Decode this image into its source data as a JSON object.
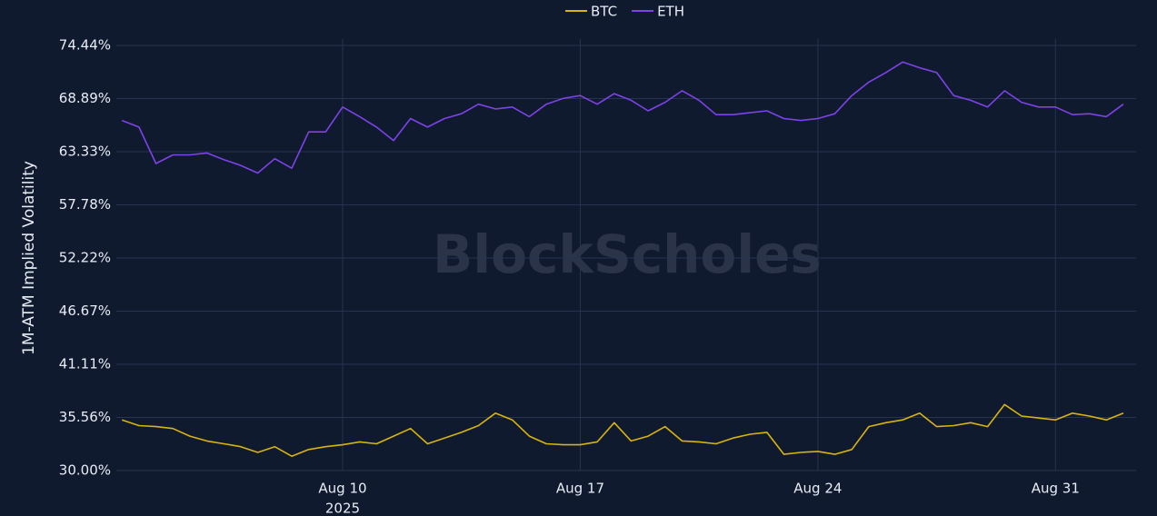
{
  "chart_data": {
    "type": "line",
    "watermark": "BlockScholes",
    "y_axis_label": "1M-ATM Implied Volatility",
    "x_axis_year_label": "2025",
    "xlim": [
      "2025-08-03T08:00",
      "2025-09-02T09:00"
    ],
    "xticks": [
      {
        "value": "2025-08-10T00:00",
        "label": "Aug 10"
      },
      {
        "value": "2025-08-17T00:00",
        "label": "Aug 17"
      },
      {
        "value": "2025-08-24T00:00",
        "label": "Aug 24"
      },
      {
        "value": "2025-08-31T00:00",
        "label": "Aug 31"
      }
    ],
    "ylim": [
      30,
      74.44
    ],
    "yticks": [
      {
        "value": 30,
        "label": "30.00%"
      },
      {
        "value": 35.56,
        "label": "35.56%"
      },
      {
        "value": 41.11,
        "label": "41.11%"
      },
      {
        "value": 46.67,
        "label": "46.67%"
      },
      {
        "value": 52.22,
        "label": "52.22%"
      },
      {
        "value": 57.78,
        "label": "57.78%"
      },
      {
        "value": 63.33,
        "label": "63.33%"
      },
      {
        "value": 68.89,
        "label": "68.89%"
      },
      {
        "value": 74.44,
        "label": "74.44%"
      }
    ],
    "grid": true,
    "legend": "top",
    "x": [
      "2025-08-03T12:00",
      "2025-08-04T00:00",
      "2025-08-04T12:00",
      "2025-08-05T00:00",
      "2025-08-05T12:00",
      "2025-08-06T00:00",
      "2025-08-06T12:00",
      "2025-08-07T00:00",
      "2025-08-07T12:00",
      "2025-08-08T00:00",
      "2025-08-08T12:00",
      "2025-08-09T00:00",
      "2025-08-09T12:00",
      "2025-08-10T00:00",
      "2025-08-10T12:00",
      "2025-08-11T00:00",
      "2025-08-11T12:00",
      "2025-08-12T00:00",
      "2025-08-12T12:00",
      "2025-08-13T00:00",
      "2025-08-13T12:00",
      "2025-08-14T00:00",
      "2025-08-14T12:00",
      "2025-08-15T00:00",
      "2025-08-15T12:00",
      "2025-08-16T00:00",
      "2025-08-16T12:00",
      "2025-08-17T00:00",
      "2025-08-17T12:00",
      "2025-08-18T00:00",
      "2025-08-18T12:00",
      "2025-08-19T00:00",
      "2025-08-19T12:00",
      "2025-08-20T00:00",
      "2025-08-20T12:00",
      "2025-08-21T00:00",
      "2025-08-21T12:00",
      "2025-08-22T00:00",
      "2025-08-22T12:00",
      "2025-08-23T00:00",
      "2025-08-23T12:00",
      "2025-08-24T00:00",
      "2025-08-24T12:00",
      "2025-08-25T00:00",
      "2025-08-25T12:00",
      "2025-08-26T00:00",
      "2025-08-26T12:00",
      "2025-08-27T00:00",
      "2025-08-27T12:00",
      "2025-08-28T00:00",
      "2025-08-28T12:00",
      "2025-08-29T00:00",
      "2025-08-29T12:00",
      "2025-08-30T00:00",
      "2025-08-30T12:00",
      "2025-08-31T00:00",
      "2025-08-31T12:00",
      "2025-09-01T00:00",
      "2025-09-01T12:00",
      "2025-09-02T00:00"
    ],
    "series": [
      {
        "name": "BTC",
        "color": "#d8b40c",
        "values": [
          35.3,
          34.7,
          34.6,
          34.4,
          33.6,
          33.1,
          32.8,
          32.5,
          31.9,
          32.5,
          31.5,
          32.2,
          32.5,
          32.7,
          33.0,
          32.8,
          33.6,
          34.4,
          32.8,
          33.4,
          34.0,
          34.7,
          36.0,
          35.3,
          33.6,
          32.8,
          32.7,
          32.7,
          33.0,
          35.0,
          33.1,
          33.6,
          34.6,
          33.1,
          33.0,
          32.8,
          33.4,
          33.8,
          34.0,
          31.7,
          31.9,
          32.0,
          31.7,
          32.2,
          34.6,
          35.0,
          35.3,
          36.0,
          34.6,
          34.7,
          35.0,
          34.6,
          36.9,
          35.7,
          35.5,
          35.3,
          36.0,
          35.7,
          35.3,
          36.0
        ]
      },
      {
        "name": "ETH",
        "color": "#7d42e8",
        "values": [
          66.6,
          65.9,
          62.1,
          63.0,
          63.0,
          63.2,
          62.5,
          61.9,
          61.1,
          62.6,
          61.6,
          65.4,
          65.4,
          68.0,
          67.0,
          65.9,
          64.5,
          66.8,
          65.9,
          66.8,
          67.3,
          68.3,
          67.8,
          68.0,
          67.0,
          68.3,
          68.9,
          69.2,
          68.3,
          69.4,
          68.7,
          67.6,
          68.5,
          69.7,
          68.7,
          67.2,
          67.2,
          67.4,
          67.6,
          66.8,
          66.6,
          66.8,
          67.3,
          69.2,
          70.6,
          71.6,
          72.7,
          72.1,
          71.6,
          69.2,
          68.7,
          68.0,
          69.7,
          68.5,
          68.0,
          68.0,
          67.2,
          67.3,
          67.0,
          68.3
        ]
      }
    ]
  }
}
